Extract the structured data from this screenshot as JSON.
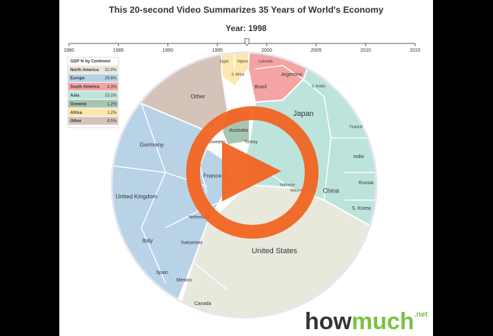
{
  "chart_data": {
    "type": "voronoi",
    "title": "This 20-second Video Summarizes 35 Years of World's Economy",
    "subtitle": "Year: 1998",
    "slider": {
      "xlim": [
        1980,
        2015
      ],
      "xticks": [
        1980,
        1985,
        1990,
        1995,
        2000,
        2005,
        2010,
        2015
      ],
      "value": 1998
    },
    "legend_title": "GDP % by Continent",
    "series": [
      {
        "name": "North America",
        "color": "#e9e8dc",
        "value": 32.8,
        "value_label": "32.8%",
        "cells": [
          "United States",
          "Canada",
          "Mexico"
        ]
      },
      {
        "name": "Europe",
        "color": "#b8d2e6",
        "value": 29.8,
        "value_label": "29.8%",
        "cells": [
          "Germany",
          "United Kingdom",
          "France",
          "Italy",
          "Spain",
          "Netherlands",
          "Switzerland",
          "Sweden"
        ]
      },
      {
        "name": "South America",
        "color": "#f5a3a3",
        "value": 4.3,
        "value_label": "4.3%",
        "cells": [
          "Brazil",
          "Argentina",
          "Colombia"
        ]
      },
      {
        "name": "Asia",
        "color": "#bde4dc",
        "value": 23.1,
        "value_label": "23.1%",
        "cells": [
          "Japan",
          "China",
          "India",
          "Russia",
          "S. Korea",
          "Turkey",
          "Thailand",
          "Indonesia",
          "Malaysia",
          "S. Arabia"
        ]
      },
      {
        "name": "Oceania",
        "color": "#a8c5b2",
        "value": 1.2,
        "value_label": "1.2%",
        "cells": [
          "Australia"
        ]
      },
      {
        "name": "Africa",
        "color": "#fbe8ae",
        "value": 1.2,
        "value_label": "1.2%",
        "cells": [
          "Egypt",
          "Nigeria",
          "S. Africa"
        ]
      },
      {
        "name": "Other",
        "color": "#d5c3b9",
        "value": 8.5,
        "value_label": "8.5%",
        "cells": [
          "Other"
        ]
      }
    ]
  },
  "logo": {
    "part1": "how",
    "part2": "much",
    "suffix": ".net"
  }
}
